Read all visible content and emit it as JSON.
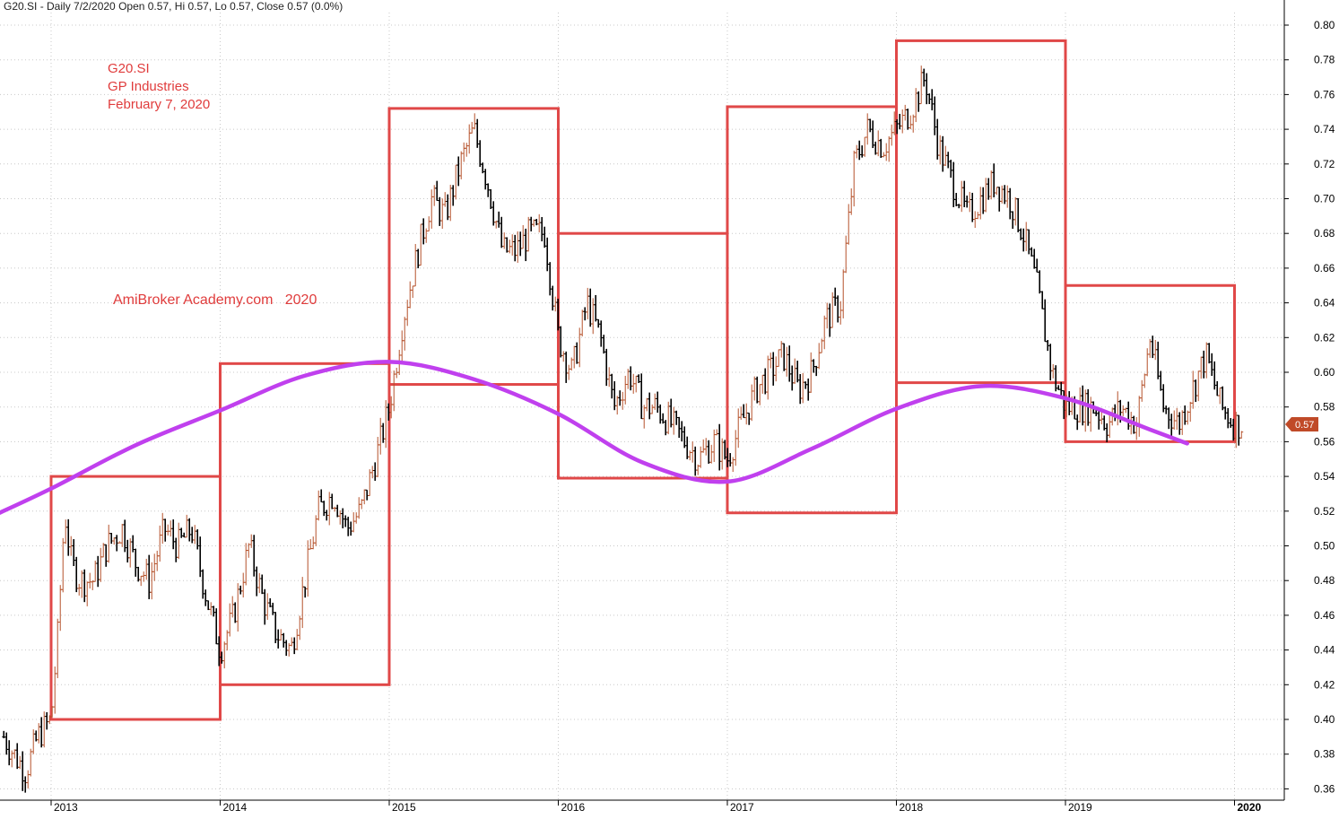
{
  "header": "G20.SI - Daily 7/2/2020 Open 0.57, Hi 0.57, Lo 0.57, Close 0.57 (0.0%)",
  "colors": {
    "background": "#ffffff",
    "box": "#e04848",
    "curve": "#c040ee",
    "up_bar": "#b5522b",
    "down_bar": "#000000",
    "last_price_tag": "#c04a28",
    "grid": "#c8c8c8"
  },
  "chart_data": {
    "type": "line",
    "title": "",
    "xlabel": "",
    "ylabel": "",
    "ylim": [
      0.355,
      0.81
    ],
    "xlim": [
      2012.7,
      2020.17
    ],
    "yticks": [
      "0.80",
      "0.78",
      "0.76",
      "0.74",
      "0.72",
      "0.70",
      "0.68",
      "0.66",
      "0.64",
      "0.62",
      "0.60",
      "0.58",
      "0.56",
      "0.54",
      "0.52",
      "0.50",
      "0.48",
      "0.46",
      "0.44",
      "0.42",
      "0.40",
      "0.38",
      "0.36"
    ],
    "xticks": [
      "2013",
      "2014",
      "2015",
      "2016",
      "2017",
      "2018",
      "2019",
      "2020"
    ],
    "grid": true,
    "annotations": [
      "G20.SI",
      "GP Industries",
      "February 7, 2020",
      "AmiBroker Academy.com   2020"
    ],
    "last_price_label": "0.57",
    "price_series": {
      "name": "",
      "x": [
        2012.72,
        2012.78,
        2012.85,
        2012.92,
        2013.0,
        2013.04,
        2013.08,
        2013.12,
        2013.17,
        2013.25,
        2013.33,
        2013.42,
        2013.5,
        2013.58,
        2013.67,
        2013.75,
        2013.83,
        2013.92,
        2014.0,
        2014.08,
        2014.17,
        2014.25,
        2014.33,
        2014.42,
        2014.5,
        2014.58,
        2014.67,
        2014.75,
        2014.83,
        2014.92,
        2015.0,
        2015.08,
        2015.17,
        2015.25,
        2015.33,
        2015.42,
        2015.5,
        2015.58,
        2015.67,
        2015.75,
        2015.83,
        2015.92,
        2016.0,
        2016.08,
        2016.17,
        2016.25,
        2016.33,
        2016.42,
        2016.5,
        2016.58,
        2016.67,
        2016.75,
        2016.83,
        2016.92,
        2017.0,
        2017.08,
        2017.17,
        2017.25,
        2017.33,
        2017.42,
        2017.5,
        2017.58,
        2017.67,
        2017.75,
        2017.83,
        2017.92,
        2018.0,
        2018.08,
        2018.17,
        2018.25,
        2018.33,
        2018.42,
        2018.5,
        2018.58,
        2018.67,
        2018.75,
        2018.83,
        2018.92,
        2019.0,
        2019.08,
        2019.17,
        2019.25,
        2019.33,
        2019.42,
        2019.5,
        2019.58,
        2019.67,
        2019.75,
        2019.83,
        2019.92,
        2020.0,
        2020.05
      ],
      "values": [
        0.39,
        0.38,
        0.37,
        0.39,
        0.4,
        0.45,
        0.52,
        0.49,
        0.48,
        0.48,
        0.5,
        0.51,
        0.49,
        0.48,
        0.51,
        0.5,
        0.51,
        0.47,
        0.44,
        0.46,
        0.5,
        0.47,
        0.45,
        0.44,
        0.48,
        0.52,
        0.53,
        0.51,
        0.52,
        0.55,
        0.58,
        0.63,
        0.67,
        0.7,
        0.69,
        0.72,
        0.74,
        0.71,
        0.67,
        0.67,
        0.68,
        0.68,
        0.62,
        0.6,
        0.64,
        0.62,
        0.58,
        0.6,
        0.58,
        0.58,
        0.57,
        0.56,
        0.55,
        0.56,
        0.55,
        0.57,
        0.59,
        0.6,
        0.61,
        0.59,
        0.6,
        0.63,
        0.64,
        0.72,
        0.74,
        0.73,
        0.74,
        0.75,
        0.77,
        0.73,
        0.71,
        0.69,
        0.7,
        0.71,
        0.7,
        0.68,
        0.65,
        0.6,
        0.58,
        0.58,
        0.58,
        0.57,
        0.58,
        0.57,
        0.62,
        0.58,
        0.57,
        0.59,
        0.61,
        0.58,
        0.57,
        0.57
      ]
    },
    "boxes": [
      {
        "x0": 2013.0,
        "x1": 2014.0,
        "y0": 0.4,
        "y1": 0.54
      },
      {
        "x0": 2014.0,
        "x1": 2015.0,
        "y0": 0.42,
        "y1": 0.605
      },
      {
        "x0": 2015.0,
        "x1": 2016.0,
        "y0": 0.593,
        "y1": 0.752
      },
      {
        "x0": 2016.0,
        "x1": 2017.0,
        "y0": 0.539,
        "y1": 0.68
      },
      {
        "x0": 2017.0,
        "x1": 2018.0,
        "y0": 0.519,
        "y1": 0.753
      },
      {
        "x0": 2018.0,
        "x1": 2019.0,
        "y0": 0.594,
        "y1": 0.791
      },
      {
        "x0": 2019.0,
        "x1": 2020.0,
        "y0": 0.56,
        "y1": 0.65
      }
    ],
    "cycle_curve": {
      "x": [
        2012.65,
        2013.0,
        2013.5,
        2014.0,
        2014.5,
        2015.0,
        2015.5,
        2016.0,
        2016.5,
        2017.0,
        2017.5,
        2018.0,
        2018.5,
        2019.0,
        2019.5,
        2019.72
      ],
      "values": [
        0.517,
        0.533,
        0.558,
        0.578,
        0.598,
        0.606,
        0.596,
        0.576,
        0.548,
        0.537,
        0.556,
        0.579,
        0.592,
        0.585,
        0.567,
        0.559
      ]
    }
  }
}
